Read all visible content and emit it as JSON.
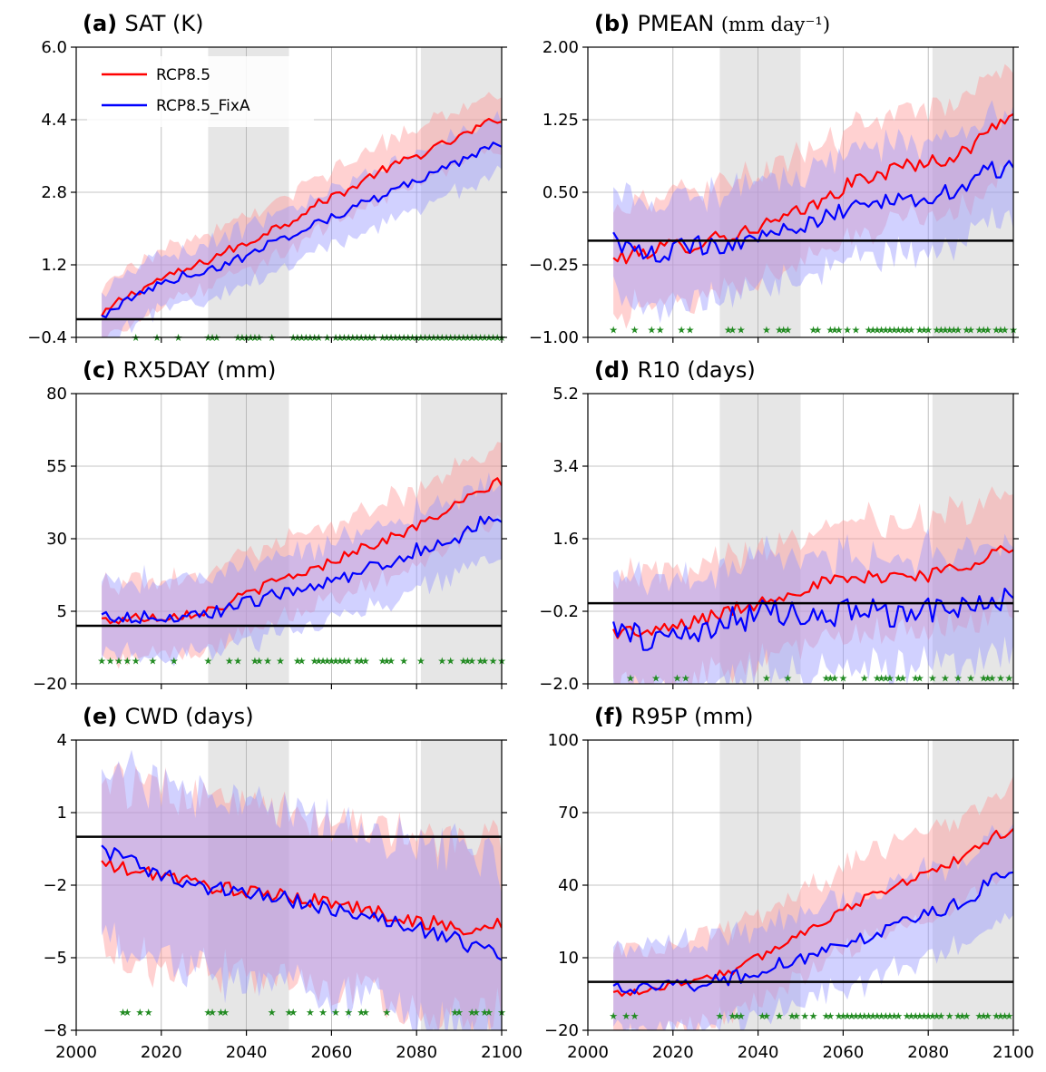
{
  "figure": {
    "legend": [
      {
        "name": "RCP8.5",
        "color": "#ff0000"
      },
      {
        "name": "RCP8.5_FixA",
        "color": "#0000ff"
      }
    ],
    "legend_placement": "top-left of panel (a)",
    "shaded_periods": [
      [
        2031,
        2050
      ],
      [
        2081,
        2100
      ]
    ],
    "colors": {
      "rcp": "#ff0000",
      "fixa": "#0000ff",
      "band_rcp": "#ff9a9a",
      "band_fixa": "#9a9aff",
      "shade": "#e6e6e6",
      "stars": "#228b22"
    }
  },
  "chart_data": [
    {
      "type": "line",
      "label": "(a)",
      "title": "SAT (K)",
      "title_suffix": "",
      "xlim": [
        2000,
        2100
      ],
      "ylim": [
        -0.4,
        6.0
      ],
      "xticks": [
        2000,
        2020,
        2040,
        2060,
        2080,
        2100
      ],
      "yticks": [
        -0.4,
        1.2,
        2.8,
        4.4,
        6.0
      ],
      "ytick_labels": [
        "−0.4",
        "1.2",
        "2.8",
        "4.4",
        "6.0"
      ],
      "yaxis_side": "left",
      "show_xticklabels": false,
      "zero_line": 0,
      "series": [
        {
          "name": "RCP8.5",
          "x": [
            2006,
            2010,
            2015,
            2020,
            2025,
            2030,
            2035,
            2040,
            2045,
            2050,
            2055,
            2060,
            2065,
            2070,
            2075,
            2080,
            2085,
            2090,
            2095,
            2100
          ],
          "y": [
            0.05,
            0.4,
            0.65,
            0.9,
            1.05,
            1.25,
            1.5,
            1.65,
            1.95,
            2.15,
            2.45,
            2.7,
            2.9,
            3.2,
            3.4,
            3.6,
            3.8,
            4.0,
            4.25,
            4.45
          ],
          "noise": 0.1
        },
        {
          "name": "RCP8.5_FixA",
          "x": [
            2006,
            2010,
            2015,
            2020,
            2025,
            2030,
            2035,
            2040,
            2045,
            2050,
            2055,
            2060,
            2065,
            2070,
            2075,
            2080,
            2085,
            2090,
            2095,
            2100
          ],
          "y": [
            0.05,
            0.3,
            0.55,
            0.8,
            0.95,
            1.05,
            1.2,
            1.4,
            1.65,
            1.85,
            2.05,
            2.25,
            2.45,
            2.65,
            2.85,
            3.05,
            3.25,
            3.45,
            3.7,
            3.9
          ],
          "noise": 0.1
        }
      ],
      "band_width": [
        0.6,
        0.6
      ],
      "sig_years": [
        2014,
        2019,
        2024,
        2031,
        2032,
        2033,
        2038,
        2039,
        2040,
        2041,
        2042,
        2043,
        2046,
        2051,
        2052,
        2053,
        2054,
        2055,
        2056,
        2057,
        2059,
        2061,
        2062,
        2063,
        2064,
        2065,
        2066,
        2067,
        2068,
        2069,
        2070,
        2072,
        2073,
        2074,
        2075,
        2076,
        2077,
        2078,
        2079,
        2080,
        2081,
        2082,
        2083,
        2084,
        2085,
        2086,
        2087,
        2088,
        2089,
        2090,
        2091,
        2092,
        2093,
        2094,
        2095,
        2096,
        2097,
        2098,
        2099,
        2100
      ],
      "sig_y": -0.4
    },
    {
      "type": "line",
      "label": "(b)",
      "title": "PMEAN",
      "title_suffix": "(mm day⁻¹)",
      "xlim": [
        2000,
        2100
      ],
      "ylim": [
        -1.0,
        2.0
      ],
      "xticks": [
        2000,
        2020,
        2040,
        2060,
        2080,
        2100
      ],
      "yticks": [
        -1.0,
        -0.25,
        0.5,
        1.25,
        2.0
      ],
      "ytick_labels": [
        "−1.00",
        "−0.25",
        "0.50",
        "1.25",
        "2.00"
      ],
      "yaxis_side": "left",
      "show_xticklabels": false,
      "zero_line": 0,
      "series": [
        {
          "name": "RCP8.5",
          "x": [
            2006,
            2010,
            2015,
            2020,
            2025,
            2030,
            2035,
            2040,
            2045,
            2050,
            2055,
            2060,
            2065,
            2070,
            2075,
            2080,
            2085,
            2090,
            2095,
            2100
          ],
          "y": [
            -0.2,
            -0.15,
            -0.1,
            -0.05,
            -0.05,
            0.05,
            0.05,
            0.15,
            0.2,
            0.3,
            0.4,
            0.55,
            0.65,
            0.7,
            0.8,
            0.8,
            0.85,
            0.95,
            1.2,
            1.3
          ],
          "noise": 0.08
        },
        {
          "name": "RCP8.5_FixA",
          "x": [
            2006,
            2010,
            2015,
            2020,
            2025,
            2030,
            2035,
            2040,
            2045,
            2050,
            2055,
            2060,
            2065,
            2070,
            2075,
            2080,
            2085,
            2090,
            2095,
            2100
          ],
          "y": [
            0.05,
            -0.1,
            -0.15,
            -0.1,
            -0.05,
            -0.05,
            0.0,
            0.05,
            0.1,
            0.15,
            0.2,
            0.3,
            0.35,
            0.4,
            0.45,
            0.45,
            0.5,
            0.6,
            0.75,
            0.75
          ],
          "noise": 0.1
        },
        {
          "name": "",
          "x": [],
          "y": []
        }
      ],
      "band_width": [
        0.55,
        0.55
      ],
      "sig_years": [
        2006,
        2011,
        2015,
        2017,
        2022,
        2024,
        2033,
        2034,
        2036,
        2042,
        2045,
        2046,
        2047,
        2053,
        2054,
        2057,
        2058,
        2059,
        2061,
        2063,
        2066,
        2067,
        2068,
        2069,
        2070,
        2071,
        2072,
        2073,
        2074,
        2075,
        2076,
        2078,
        2079,
        2080,
        2082,
        2083,
        2084,
        2085,
        2086,
        2087,
        2089,
        2090,
        2092,
        2093,
        2094,
        2096,
        2097,
        2098,
        2100
      ],
      "sig_y": -0.92
    },
    {
      "type": "line",
      "label": "(c)",
      "title": "RX5DAY (mm)",
      "title_suffix": "",
      "xlim": [
        2000,
        2100
      ],
      "ylim": [
        -20,
        80
      ],
      "xticks": [
        2000,
        2020,
        2040,
        2060,
        2080,
        2100
      ],
      "yticks": [
        -20,
        5,
        30,
        55,
        80
      ],
      "ytick_labels": [
        "−20",
        "5",
        "30",
        "55",
        "80"
      ],
      "yaxis_side": "left",
      "show_xticklabels": false,
      "zero_line": 0,
      "series": [
        {
          "name": "RCP8.5",
          "x": [
            2006,
            2010,
            2015,
            2020,
            2025,
            2030,
            2035,
            2040,
            2045,
            2050,
            2055,
            2060,
            2065,
            2070,
            2075,
            2080,
            2085,
            2090,
            2095,
            2100
          ],
          "y": [
            2,
            2,
            3,
            3,
            4,
            5,
            7,
            11,
            14,
            17,
            19,
            22,
            26,
            28,
            31,
            34,
            38,
            42,
            46,
            50
          ],
          "noise": 1.8
        },
        {
          "name": "RCP8.5_FixA",
          "x": [
            2006,
            2010,
            2015,
            2020,
            2025,
            2030,
            2035,
            2040,
            2045,
            2050,
            2055,
            2060,
            2065,
            2070,
            2075,
            2080,
            2085,
            2090,
            2095,
            2100
          ],
          "y": [
            3,
            3,
            3,
            3,
            3,
            3,
            6,
            8,
            10,
            12,
            14,
            15,
            18,
            20,
            23,
            26,
            28,
            31,
            36,
            38
          ],
          "noise": 2.4
        }
      ],
      "band_width": [
        13,
        13
      ],
      "sig_years": [
        2006,
        2008,
        2010,
        2012,
        2014,
        2018,
        2023,
        2031,
        2036,
        2038,
        2042,
        2043,
        2045,
        2048,
        2052,
        2053,
        2056,
        2057,
        2058,
        2059,
        2060,
        2061,
        2062,
        2063,
        2064,
        2066,
        2067,
        2068,
        2072,
        2073,
        2074,
        2077,
        2081,
        2086,
        2088,
        2091,
        2092,
        2093,
        2095,
        2096,
        2098,
        2100
      ],
      "sig_y": -12
    },
    {
      "type": "line",
      "label": "(d)",
      "title": "R10 (days)",
      "title_suffix": "",
      "xlim": [
        2000,
        2100
      ],
      "ylim": [
        -2.0,
        5.2
      ],
      "xticks": [
        2000,
        2020,
        2040,
        2060,
        2080,
        2100
      ],
      "yticks": [
        -2.0,
        -0.2,
        1.6,
        3.4,
        5.2
      ],
      "ytick_labels": [
        "−2.0",
        "−0.2",
        "1.6",
        "3.4",
        "5.2"
      ],
      "yaxis_side": "left",
      "show_xticklabels": false,
      "zero_line": 0,
      "series": [
        {
          "name": "RCP8.5",
          "x": [
            2006,
            2010,
            2015,
            2020,
            2025,
            2030,
            2035,
            2040,
            2045,
            2050,
            2055,
            2060,
            2065,
            2070,
            2075,
            2080,
            2085,
            2090,
            2095,
            2100
          ],
          "y": [
            -0.7,
            -0.7,
            -0.75,
            -0.6,
            -0.45,
            -0.3,
            -0.15,
            0.0,
            0.2,
            0.35,
            0.5,
            0.55,
            0.6,
            0.7,
            0.7,
            0.7,
            0.85,
            1.0,
            1.3,
            1.3
          ],
          "noise": 0.18
        },
        {
          "name": "RCP8.5_FixA",
          "x": [
            2006,
            2010,
            2015,
            2020,
            2025,
            2030,
            2035,
            2040,
            2045,
            2050,
            2055,
            2060,
            2065,
            2070,
            2075,
            2080,
            2085,
            2090,
            2095,
            2100
          ],
          "y": [
            -0.6,
            -0.7,
            -0.9,
            -0.8,
            -0.7,
            -0.6,
            -0.4,
            -0.3,
            -0.2,
            -0.2,
            -0.3,
            -0.2,
            -0.2,
            -0.3,
            -0.2,
            -0.1,
            -0.2,
            -0.1,
            -0.1,
            0.1
          ],
          "noise": 0.35
        }
      ],
      "band_width": [
        1.4,
        1.4
      ],
      "sig_years": [
        2010,
        2016,
        2021,
        2023,
        2042,
        2047,
        2056,
        2057,
        2058,
        2060,
        2065,
        2068,
        2069,
        2070,
        2071,
        2073,
        2074,
        2077,
        2078,
        2081,
        2084,
        2087,
        2090,
        2093,
        2094,
        2095,
        2097,
        2099
      ],
      "sig_y": -1.85
    },
    {
      "type": "line",
      "label": "(e)",
      "title": "CWD (days)",
      "title_suffix": "",
      "xlim": [
        2000,
        2100
      ],
      "ylim": [
        -8,
        4
      ],
      "xticks": [
        2000,
        2020,
        2040,
        2060,
        2080,
        2100
      ],
      "xtick_labels": [
        "2000",
        "2020",
        "2040",
        "2060",
        "2080",
        "2100"
      ],
      "yticks": [
        -8,
        -5,
        -2,
        1,
        4
      ],
      "ytick_labels": [
        "−8",
        "−5",
        "−2",
        "1",
        "4"
      ],
      "yaxis_side": "left",
      "show_xticklabels": true,
      "zero_line": 0,
      "series": [
        {
          "name": "RCP8.5",
          "x": [
            2006,
            2010,
            2015,
            2020,
            2025,
            2030,
            2035,
            2040,
            2045,
            2050,
            2055,
            2060,
            2065,
            2070,
            2075,
            2080,
            2085,
            2090,
            2095,
            2100
          ],
          "y": [
            -1.1,
            -1.3,
            -1.5,
            -1.5,
            -1.8,
            -2.0,
            -2.1,
            -2.3,
            -2.4,
            -2.5,
            -2.6,
            -2.7,
            -2.9,
            -3.1,
            -3.3,
            -3.5,
            -3.6,
            -3.8,
            -3.9,
            -3.5
          ],
          "noise": 0.3
        },
        {
          "name": "RCP8.5_FixA",
          "x": [
            2006,
            2010,
            2015,
            2020,
            2025,
            2030,
            2035,
            2040,
            2045,
            2050,
            2055,
            2060,
            2065,
            2070,
            2075,
            2080,
            2085,
            2090,
            2095,
            2100
          ],
          "y": [
            -0.5,
            -0.8,
            -1.2,
            -1.6,
            -1.9,
            -2.1,
            -2.2,
            -2.3,
            -2.4,
            -2.6,
            -2.8,
            -3.0,
            -3.2,
            -3.4,
            -3.6,
            -3.8,
            -4.0,
            -4.3,
            -4.7,
            -4.8
          ],
          "noise": 0.32
        }
      ],
      "band_width": [
        3.6,
        3.6
      ],
      "sig_years": [
        2011,
        2012,
        2015,
        2017,
        2031,
        2032,
        2034,
        2035,
        2046,
        2050,
        2051,
        2055,
        2058,
        2061,
        2064,
        2067,
        2068,
        2073,
        2089,
        2090,
        2093,
        2094,
        2096,
        2097,
        2100
      ],
      "sig_y": -7.25
    },
    {
      "type": "line",
      "label": "(f)",
      "title": "R95P (mm)",
      "title_suffix": "",
      "xlim": [
        2000,
        2100
      ],
      "ylim": [
        -20,
        100
      ],
      "xticks": [
        2000,
        2020,
        2040,
        2060,
        2080,
        2100
      ],
      "xtick_labels": [
        "2000",
        "2020",
        "2040",
        "2060",
        "2080",
        "2100"
      ],
      "yticks": [
        -20,
        10,
        40,
        70,
        100
      ],
      "ytick_labels": [
        "−20",
        "10",
        "40",
        "70",
        "100"
      ],
      "yaxis_side": "left",
      "show_xticklabels": true,
      "zero_line": 0,
      "series": [
        {
          "name": "RCP8.5",
          "x": [
            2006,
            2010,
            2015,
            2020,
            2025,
            2030,
            2035,
            2040,
            2045,
            2050,
            2055,
            2060,
            2065,
            2070,
            2075,
            2080,
            2085,
            2090,
            2095,
            2100
          ],
          "y": [
            -5,
            -4,
            -3,
            -1,
            1,
            3,
            5,
            10,
            15,
            20,
            25,
            30,
            34,
            38,
            42,
            45,
            49,
            53,
            60,
            63
          ],
          "noise": 2.0
        },
        {
          "name": "RCP8.5_FixA",
          "x": [
            2006,
            2010,
            2015,
            2020,
            2025,
            2030,
            2035,
            2040,
            2045,
            2050,
            2055,
            2060,
            2065,
            2070,
            2075,
            2080,
            2085,
            2090,
            2095,
            2100
          ],
          "y": [
            -3,
            -3,
            -2,
            -2,
            -1,
            0,
            2,
            5,
            7,
            10,
            12,
            15,
            18,
            21,
            25,
            28,
            31,
            35,
            42,
            45
          ],
          "noise": 3.0
        }
      ],
      "band_width": [
        18,
        18
      ],
      "sig_years": [
        2006,
        2009,
        2011,
        2031,
        2034,
        2035,
        2036,
        2041,
        2042,
        2045,
        2048,
        2049,
        2051,
        2053,
        2056,
        2057,
        2059,
        2060,
        2061,
        2062,
        2063,
        2064,
        2065,
        2066,
        2067,
        2068,
        2069,
        2070,
        2071,
        2072,
        2073,
        2075,
        2076,
        2077,
        2078,
        2079,
        2080,
        2081,
        2082,
        2083,
        2085,
        2087,
        2088,
        2089,
        2092,
        2093,
        2094,
        2096,
        2097,
        2098,
        2099
      ],
      "sig_y": -14
    }
  ]
}
